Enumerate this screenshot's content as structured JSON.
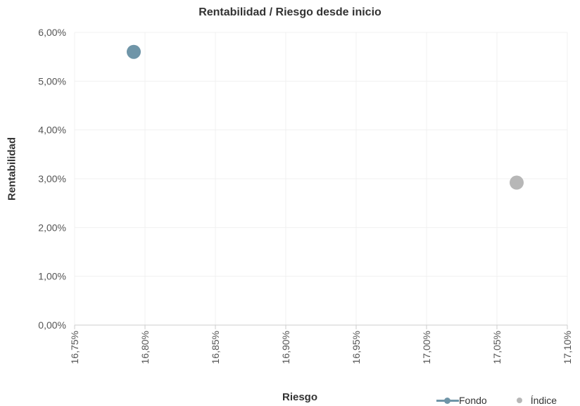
{
  "chart_data": {
    "type": "scatter",
    "title": "Rentabilidad / Riesgo desde inicio",
    "xlabel": "Riesgo",
    "ylabel": "Rentabilidad",
    "xlim": [
      16.75,
      17.1
    ],
    "ylim": [
      0,
      6
    ],
    "x_ticks": [
      16.75,
      16.8,
      16.85,
      16.9,
      16.95,
      17.0,
      17.05,
      17.1
    ],
    "x_tick_labels": [
      "16,75%",
      "16,80%",
      "16,85%",
      "16,90%",
      "16,95%",
      "17,00%",
      "17,05%",
      "17,10%"
    ],
    "y_ticks": [
      0,
      1,
      2,
      3,
      4,
      5,
      6
    ],
    "y_tick_labels": [
      "0,00%",
      "1,00%",
      "2,00%",
      "3,00%",
      "4,00%",
      "5,00%",
      "6,00%"
    ],
    "grid": true,
    "legend_position": "bottom-right",
    "series": [
      {
        "name": "Fondo",
        "color": "#6f95a8",
        "points": [
          {
            "x": 16.792,
            "y": 5.6
          }
        ]
      },
      {
        "name": "Índice",
        "color": "#b7b7b7",
        "points": [
          {
            "x": 17.064,
            "y": 2.92
          }
        ]
      }
    ]
  }
}
